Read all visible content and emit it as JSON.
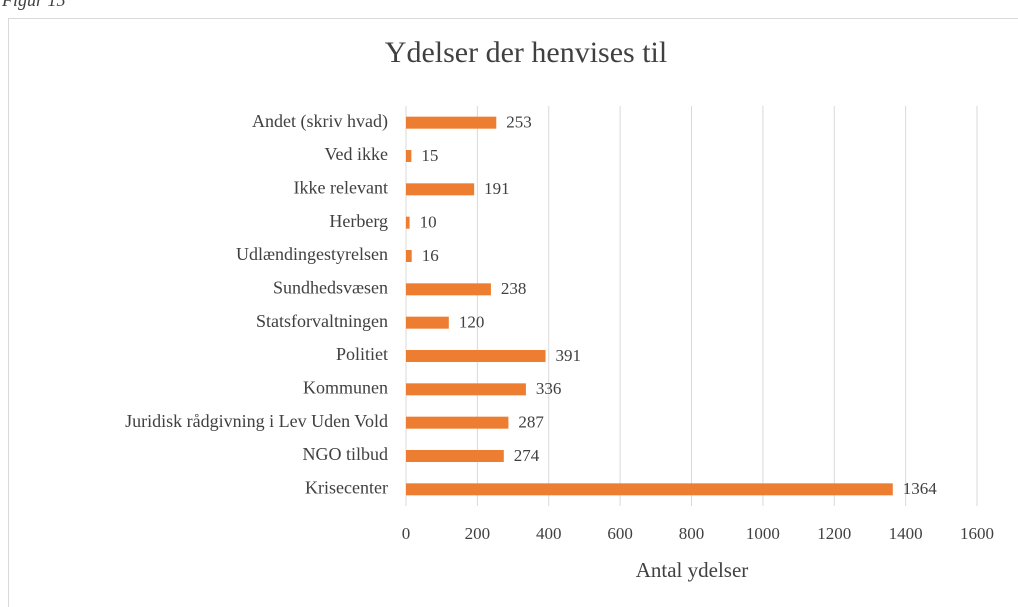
{
  "caption": "Figur 15",
  "chart_data": {
    "type": "barh",
    "title": "Ydelser der henvises til",
    "categories": [
      "Andet (skriv hvad)",
      "Ved ikke",
      "Ikke relevant",
      "Herberg",
      "Udlændingestyrelsen",
      "Sundhedsvæsen",
      "Statsforvaltningen",
      "Politiet",
      "Kommunen",
      "Juridisk rådgivning i Lev Uden Vold",
      "NGO tilbud",
      "Krisecenter"
    ],
    "values": [
      253,
      15,
      191,
      10,
      16,
      238,
      120,
      391,
      336,
      287,
      274,
      1364
    ],
    "color": "#ed7d31",
    "xlabel": "Antal ydelser",
    "xlim": [
      0,
      1600
    ],
    "xticks": [
      0,
      200,
      400,
      600,
      800,
      1000,
      1200,
      1400,
      1600
    ],
    "grid": true
  }
}
